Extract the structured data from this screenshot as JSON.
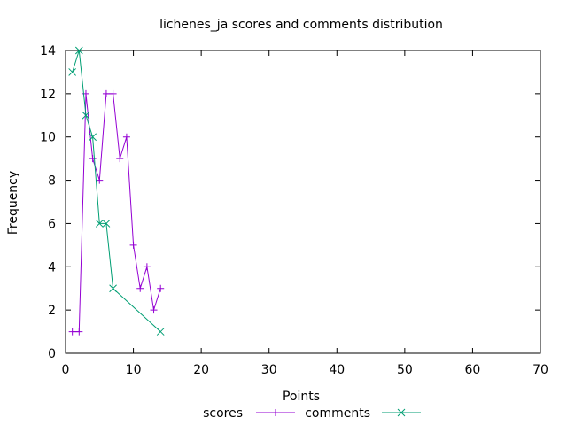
{
  "chart_data": {
    "type": "line",
    "title": "lichenes_ja scores and comments distribution",
    "xlabel": "Points",
    "ylabel": "Frequency",
    "xlim": [
      0,
      70
    ],
    "ylim": [
      0,
      14
    ],
    "xticks": [
      0,
      10,
      20,
      30,
      40,
      50,
      60,
      70
    ],
    "yticks": [
      0,
      2,
      4,
      6,
      8,
      10,
      12,
      14
    ],
    "grid": false,
    "legend_position": "bottom-center",
    "series": [
      {
        "name": "scores",
        "color": "#9400d3",
        "marker": "plus",
        "points": [
          [
            1,
            1
          ],
          [
            2,
            1
          ],
          [
            3,
            12
          ],
          [
            4,
            9
          ],
          [
            5,
            8
          ],
          [
            6,
            12
          ],
          [
            7,
            12
          ],
          [
            8,
            9
          ],
          [
            9,
            10
          ],
          [
            10,
            5
          ],
          [
            11,
            3
          ],
          [
            12,
            4
          ],
          [
            13,
            2
          ],
          [
            14,
            3
          ]
        ]
      },
      {
        "name": "comments",
        "color": "#009e73",
        "marker": "cross",
        "points": [
          [
            1,
            13
          ],
          [
            2,
            14
          ],
          [
            3,
            11
          ],
          [
            4,
            10
          ],
          [
            5,
            6
          ],
          [
            6,
            6
          ],
          [
            7,
            3
          ],
          [
            14,
            1
          ]
        ]
      }
    ]
  }
}
